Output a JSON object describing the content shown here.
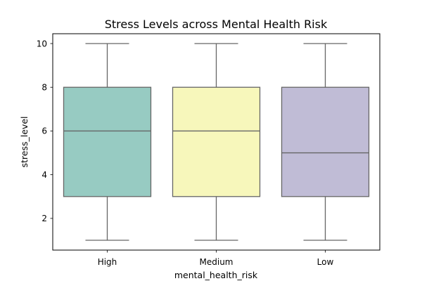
{
  "chart_data": {
    "type": "box",
    "title": "Stress Levels across Mental Health Risk",
    "xlabel": "mental_health_risk",
    "ylabel": "stress_level",
    "categories": [
      "High",
      "Medium",
      "Low"
    ],
    "boxes": [
      {
        "category": "High",
        "min": 1,
        "q1": 3,
        "median": 6,
        "q3": 8,
        "max": 10,
        "color": "#97cbc2"
      },
      {
        "category": "Medium",
        "min": 1,
        "q1": 3,
        "median": 6,
        "q3": 8,
        "max": 10,
        "color": "#f7f7bb"
      },
      {
        "category": "Low",
        "min": 1,
        "q1": 3,
        "median": 5,
        "q3": 8,
        "max": 10,
        "color": "#c0bcd6"
      }
    ],
    "ylim": [
      0.55,
      10.45
    ],
    "yticks": [
      2,
      4,
      6,
      8,
      10
    ],
    "grid": false,
    "line_color": "#666666"
  }
}
